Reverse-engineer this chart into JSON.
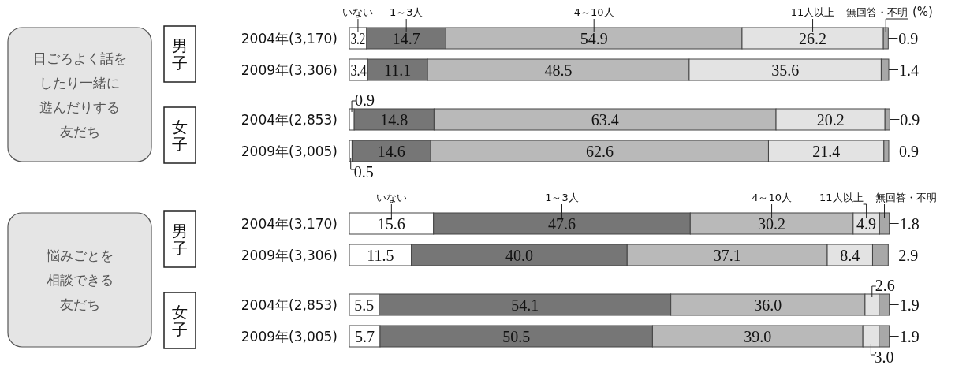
{
  "chart_data": [
    {
      "type": "bar",
      "orientation": "horizontal",
      "stacked": true,
      "xlabel": "(%)",
      "categories": [
        "2004年(3,170)",
        "2009年(3,306)",
        "2004年(2,853)",
        "2009年(3,005)"
      ],
      "annotations": [
        "男子",
        "女子",
        "日ごろよく話を",
        "したり一緒に",
        "遊んだりする",
        "友だち"
      ],
      "series": [
        {
          "name": "いない",
          "color": "#ffffff",
          "values": [
            3.2,
            3.4,
            0.9,
            0.5
          ],
          "value_labels": [
            "3.2",
            "3.4",
            "0.9",
            "0.5"
          ]
        },
        {
          "name": "1～3人",
          "color": "#767676",
          "values": [
            14.7,
            11.1,
            14.8,
            14.6
          ],
          "value_labels": [
            "14.7",
            "11.1",
            "14.8",
            "14.6"
          ]
        },
        {
          "name": "4～10人",
          "color": "#b9b9b9",
          "values": [
            54.9,
            48.5,
            63.4,
            62.6
          ],
          "value_labels": [
            "54.9",
            "48.5",
            "63.4",
            "62.6"
          ]
        },
        {
          "name": "11人以上",
          "color": "#e3e3e3",
          "values": [
            26.2,
            35.6,
            20.2,
            21.4
          ],
          "value_labels": [
            "26.2",
            "35.6",
            "20.2",
            "21.4"
          ]
        },
        {
          "name": "無回答・不明",
          "color": "#a8a8a8",
          "values": [
            0.9,
            1.4,
            0.9,
            0.9
          ],
          "value_labels": [
            "0.9",
            "1.4",
            "0.9",
            "0.9"
          ]
        }
      ]
    },
    {
      "type": "bar",
      "orientation": "horizontal",
      "stacked": true,
      "categories": [
        "2004年(3,170)",
        "2009年(3,306)",
        "2004年(2,853)",
        "2009年(3,005)"
      ],
      "annotations": [
        "男子",
        "女子",
        "悩みごとを",
        "相談できる",
        "友だち"
      ],
      "series": [
        {
          "name": "いない",
          "color": "#ffffff",
          "values": [
            15.6,
            11.5,
            5.5,
            5.7
          ],
          "value_labels": [
            "15.6",
            "11.5",
            "5.5",
            "5.7"
          ]
        },
        {
          "name": "1～3人",
          "color": "#767676",
          "values": [
            47.6,
            40.0,
            54.1,
            50.5
          ],
          "value_labels": [
            "47.6",
            "40.0",
            "54.1",
            "50.5"
          ]
        },
        {
          "name": "4～10人",
          "color": "#b9b9b9",
          "values": [
            30.2,
            37.1,
            36.0,
            39.0
          ],
          "value_labels": [
            "30.2",
            "37.1",
            "36.0",
            "39.0"
          ]
        },
        {
          "name": "11人以上",
          "color": "#e3e3e3",
          "values": [
            4.9,
            8.4,
            2.6,
            3.0
          ],
          "value_labels": [
            "4.9",
            "8.4",
            "2.6",
            "3.0"
          ]
        },
        {
          "name": "無回答・不明",
          "color": "#a8a8a8",
          "values": [
            1.8,
            2.9,
            1.9,
            1.9
          ],
          "value_labels": [
            "1.8",
            "2.9",
            "1.9",
            "1.9"
          ]
        }
      ]
    }
  ]
}
